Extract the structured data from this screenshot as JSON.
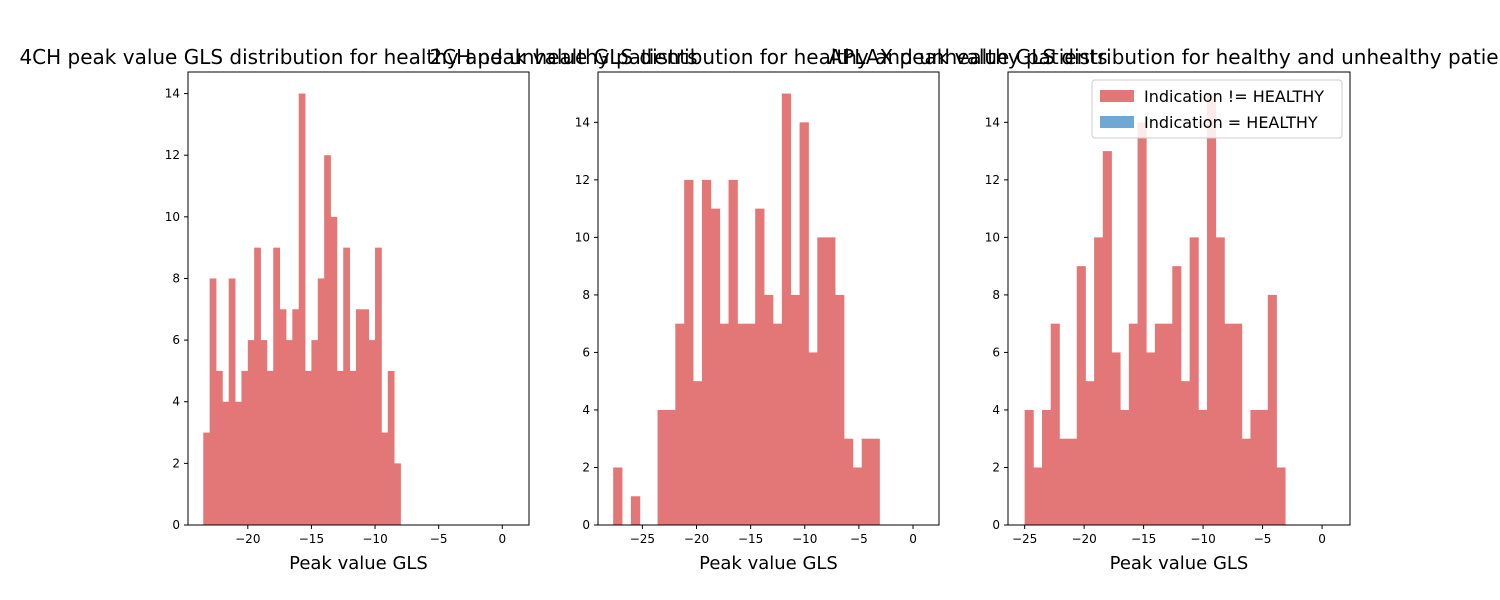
{
  "chart_data": [
    {
      "type": "bar",
      "title": "4CH peak value GLS distribution for healthy and unhealthy patients",
      "xlabel": "Peak value GLS",
      "ylabel": "",
      "xlim": [
        -24.7,
        2.1
      ],
      "ylim": [
        0,
        14.7
      ],
      "xticks": [
        -20,
        -15,
        -10,
        -5,
        0
      ],
      "yticks": [
        0,
        2,
        4,
        6,
        8,
        10,
        12,
        14
      ],
      "grid": false,
      "series": [
        {
          "name": "Indication != HEALTHY",
          "color": "#e37777",
          "bin_start": -23.5,
          "bin_width": 0.5,
          "counts": [
            3,
            8,
            5,
            4,
            8,
            4,
            5,
            6,
            9,
            6,
            5,
            9,
            7,
            6,
            7,
            14,
            5,
            6,
            8,
            12,
            10,
            5,
            9,
            5,
            7,
            7,
            6,
            9,
            3,
            5,
            2
          ]
        },
        {
          "name": "Indication = HEALTHY",
          "color": "#6fa8d5",
          "bin_start": 0,
          "bin_width": 0.5,
          "counts": []
        }
      ]
    },
    {
      "type": "bar",
      "title": "2CH peak value GLS distribution for healthy and unhealthy patients",
      "xlabel": "Peak value GLS",
      "ylabel": "",
      "xlim": [
        -29.1,
        2.4
      ],
      "ylim": [
        0,
        15.75
      ],
      "xticks": [
        -25,
        -20,
        -15,
        -10,
        -5,
        0
      ],
      "yticks": [
        0,
        2,
        4,
        6,
        8,
        10,
        12,
        14
      ],
      "grid": false,
      "series": [
        {
          "name": "Indication != HEALTHY",
          "color": "#e37777",
          "bin_start": -27.7,
          "bin_width": 0.82,
          "counts": [
            2,
            0,
            1,
            0,
            0,
            4,
            4,
            7,
            12,
            5,
            12,
            11,
            7,
            12,
            7,
            7,
            11,
            8,
            7,
            15,
            8,
            14,
            6,
            10,
            10,
            8,
            3,
            2,
            3,
            3
          ]
        },
        {
          "name": "Indication = HEALTHY",
          "color": "#6fa8d5",
          "bin_start": 0,
          "bin_width": 0.82,
          "counts": []
        }
      ]
    },
    {
      "type": "bar",
      "title": "APLAX peak value GLS distribution for healthy and unhealthy patients",
      "xlabel": "Peak value GLS",
      "ylabel": "",
      "xlim": [
        -26.4,
        2.35
      ],
      "ylim": [
        0,
        15.75
      ],
      "xticks": [
        -25,
        -20,
        -15,
        -10,
        -5,
        0
      ],
      "yticks": [
        0,
        2,
        4,
        6,
        8,
        10,
        12,
        14
      ],
      "grid": false,
      "legend_position": "top-right",
      "series": [
        {
          "name": "Indication != HEALTHY",
          "color": "#e37777",
          "bin_start": -25,
          "bin_width": 0.73,
          "counts": [
            4,
            2,
            4,
            7,
            3,
            3,
            9,
            5,
            10,
            13,
            6,
            4,
            7,
            14,
            6,
            7,
            7,
            9,
            5,
            10,
            4,
            15,
            10,
            7,
            7,
            3,
            4,
            4,
            8,
            2
          ]
        },
        {
          "name": "Indication = HEALTHY",
          "color": "#6fa8d5",
          "bin_start": 0,
          "bin_width": 0.73,
          "counts": []
        }
      ]
    }
  ],
  "legend": {
    "items": [
      {
        "label": "Indication != HEALTHY",
        "color": "#e37777"
      },
      {
        "label": "Indication = HEALTHY",
        "color": "#6fa8d5"
      }
    ]
  }
}
